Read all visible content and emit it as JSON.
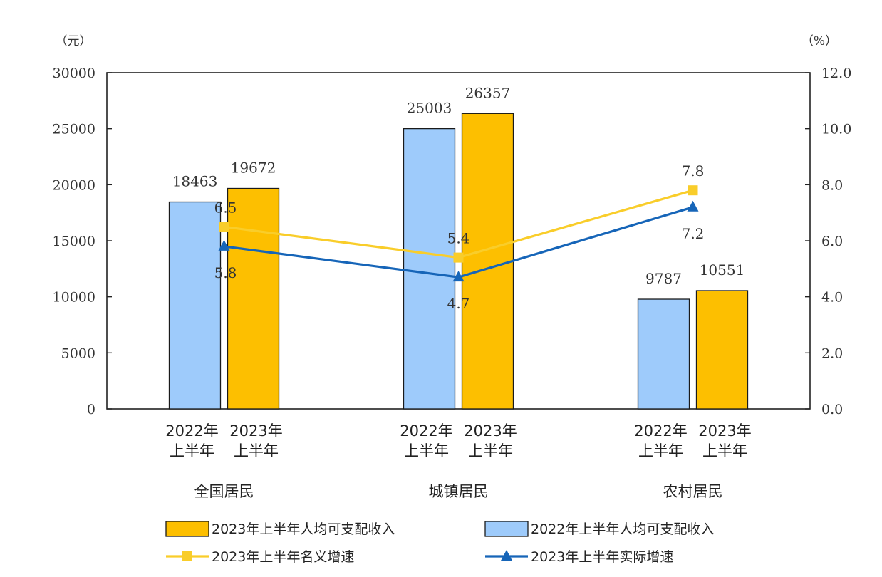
{
  "chart_data": {
    "type": "bar",
    "y_unit_left": "（元）",
    "y_unit_right": "（%）",
    "ylim_left": [
      0,
      30000
    ],
    "ylim_right": [
      0,
      12.0
    ],
    "left_ticks": [
      "0",
      "5000",
      "10000",
      "15000",
      "20000",
      "25000",
      "30000"
    ],
    "right_ticks": [
      "0.0",
      "2.0",
      "4.0",
      "6.0",
      "8.0",
      "10.0",
      "12.0"
    ],
    "categories": [
      "全国居民",
      "城镇居民",
      "农村居民"
    ],
    "sub_labels": [
      [
        "2022年",
        "上半年"
      ],
      [
        "2023年",
        "上半年"
      ]
    ],
    "series": [
      {
        "name": "2022年上半年人均可支配收入",
        "kind": "bar",
        "axis": "left",
        "values": [
          18463,
          25003,
          9787
        ],
        "labels": [
          "18463",
          "25003",
          "9787"
        ]
      },
      {
        "name": "2023年上半年人均可支配收入",
        "kind": "bar",
        "axis": "left",
        "values": [
          19672,
          26357,
          10551
        ],
        "labels": [
          "19672",
          "26357",
          "10551"
        ]
      },
      {
        "name": "2023年上半年名义增速",
        "kind": "line",
        "axis": "right",
        "values": [
          6.5,
          5.4,
          7.8
        ],
        "labels": [
          "6.5",
          "5.4",
          "7.8"
        ]
      },
      {
        "name": "2023年上半年实际增速",
        "kind": "line",
        "axis": "right",
        "values": [
          5.8,
          4.7,
          7.2
        ],
        "labels": [
          "5.8",
          "4.7",
          "7.2"
        ]
      }
    ],
    "legend": [
      "2023年上半年人均可支配收入",
      "2022年上半年人均可支配收入",
      "2023年上半年名义增速",
      "2023年上半年实际增速"
    ],
    "legend_position": "bottom",
    "colors": {
      "bar_2022": "#9ecbfb",
      "bar_2023": "#fdbf00",
      "line_nominal": "#f9cd2a",
      "line_real": "#1665b8",
      "axis": "#222222"
    }
  }
}
